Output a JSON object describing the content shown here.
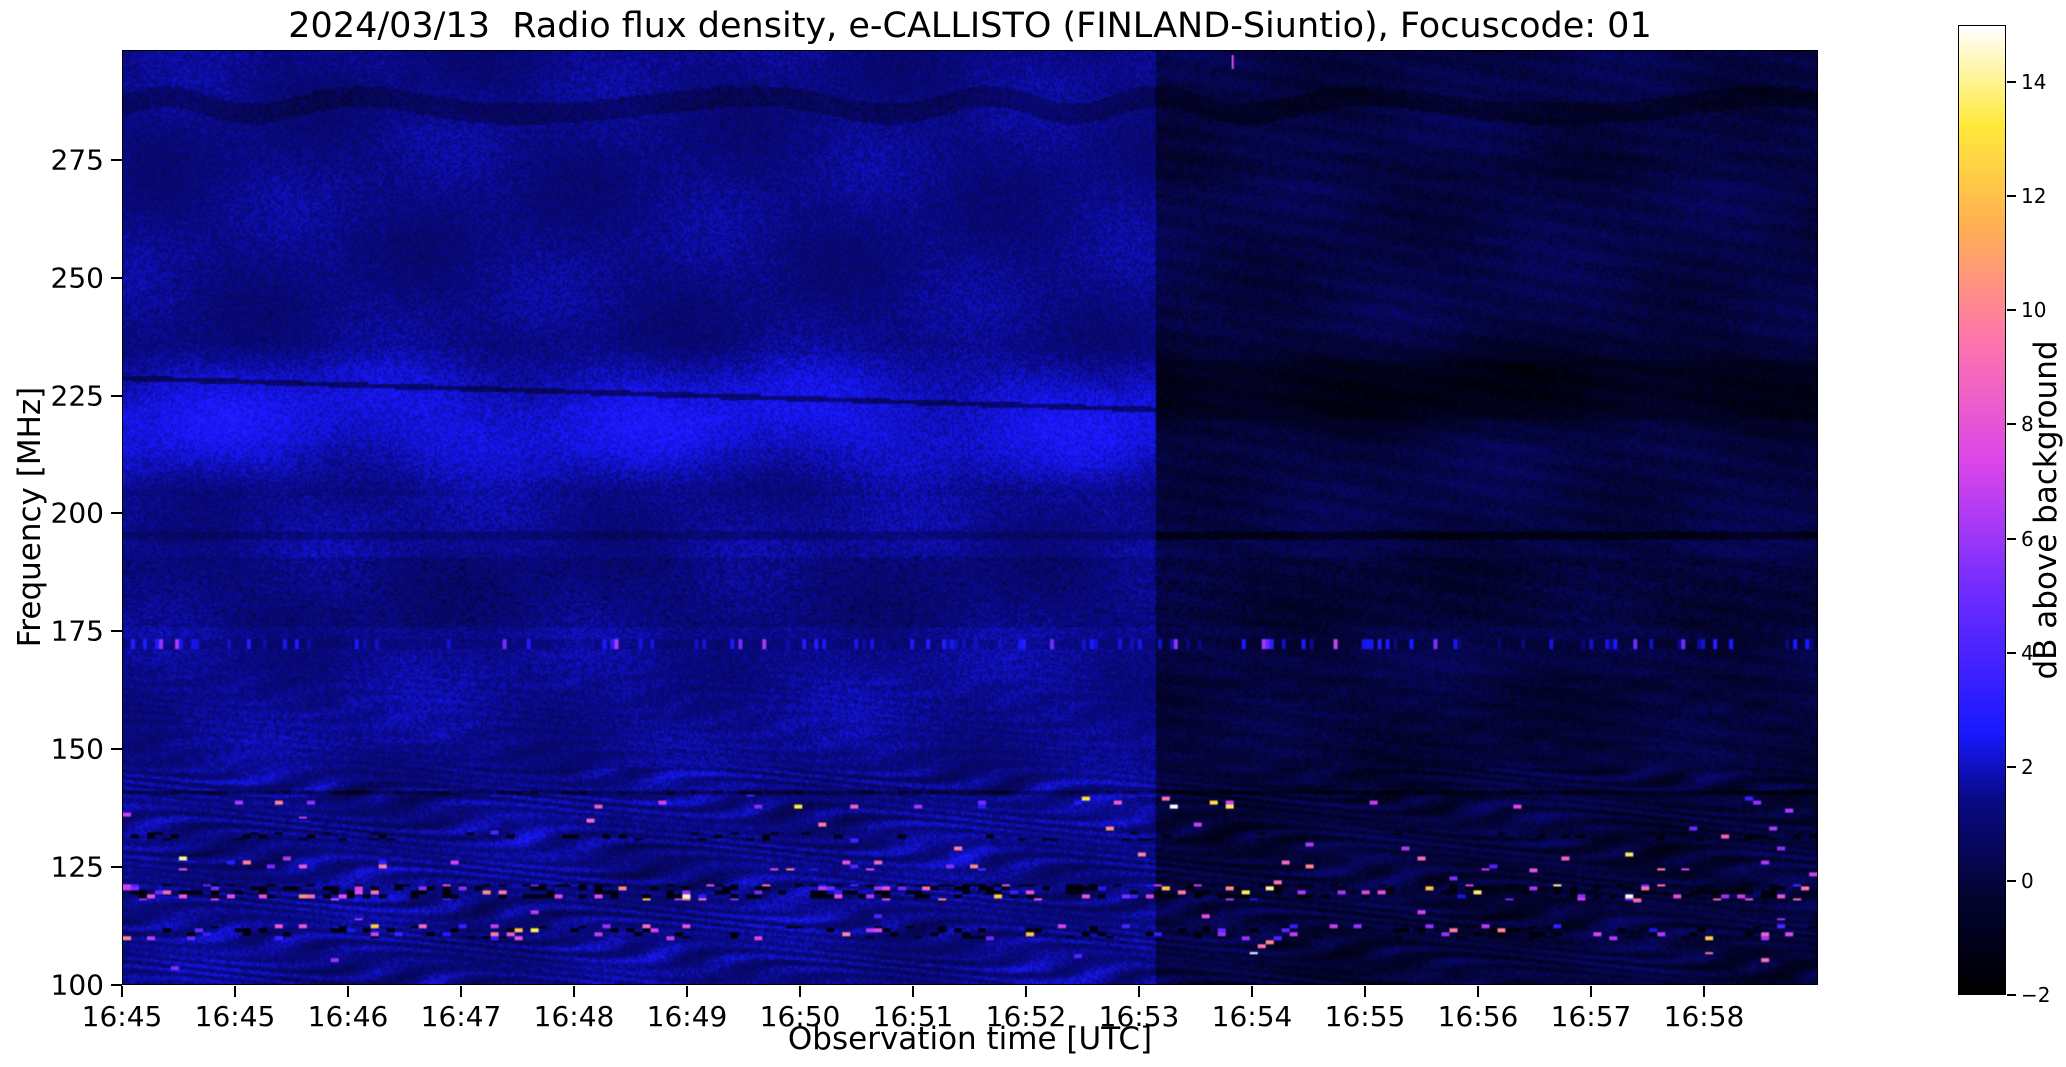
{
  "chart_data": {
    "type": "heatmap",
    "title": "2024/03/13  Radio flux density, e-CALLISTO (FINLAND-Siuntio), Focuscode: 01",
    "xlabel": "Observation time [UTC]",
    "ylabel": "Frequency [MHz]",
    "x_tick_labels": [
      "16:45",
      "16:45",
      "16:46",
      "16:47",
      "16:48",
      "16:49",
      "16:50",
      "16:51",
      "16:52",
      "16:53",
      "16:54",
      "16:55",
      "16:56",
      "16:57",
      "16:58"
    ],
    "y_tick_values": [
      100,
      125,
      150,
      175,
      200,
      225,
      250,
      275
    ],
    "y_range_mhz": [
      100,
      298.3
    ],
    "value_range_db": [
      -2,
      15
    ],
    "grid": false,
    "colorbar": {
      "label": "dB above background",
      "tick_values": [
        -2,
        0,
        2,
        4,
        6,
        8,
        10,
        12,
        14
      ],
      "colormap": "black-blue-magenta-yellow-white (gnuplot2-like)",
      "colormap_stops": [
        [
          0.0,
          0,
          0,
          0
        ],
        [
          0.1,
          4,
          4,
          50
        ],
        [
          0.2,
          10,
          10,
          135
        ],
        [
          0.27,
          25,
          25,
          255
        ],
        [
          0.42,
          115,
          45,
          255
        ],
        [
          0.55,
          220,
          70,
          235
        ],
        [
          0.68,
          255,
          120,
          170
        ],
        [
          0.8,
          255,
          180,
          80
        ],
        [
          0.9,
          255,
          235,
          60
        ],
        [
          1.0,
          255,
          255,
          255
        ]
      ]
    },
    "features": {
      "background_left_db": 1.3,
      "background_right_db": 0.1,
      "boundary_time_frac": 0.609,
      "wave_interference_below_mhz": 146,
      "wave_interference_fade_mhz": 166,
      "speckle_band_mhz": 172.4,
      "rfi_region_mhz": [
        103,
        140.5
      ],
      "rfi_hot_lines_mhz": [
        138.3,
        125.8,
        119.8,
        111.3
      ],
      "dropout_lines_mhz": [
        119.8,
        131.5,
        111.3
      ],
      "dark_line_mhz": [
        140.8,
        195.5
      ],
      "sloping_dark_line_start_mhz": 229,
      "sloping_dark_line_drop_mhz": 11,
      "bright_band_left_mhz": [
        204,
        236
      ],
      "right_dark_band_mhz": [
        214,
        240
      ],
      "top_dark_band_mhz": 287,
      "bright_dot": {
        "time_frac": 0.655,
        "freq_mhz": 296,
        "db": 7.5
      }
    }
  }
}
